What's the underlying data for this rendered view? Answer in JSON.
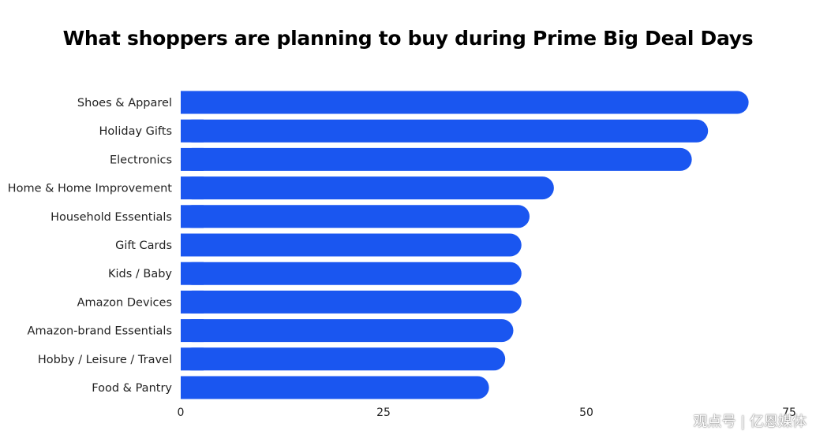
{
  "chart_data": {
    "type": "bar",
    "orientation": "horizontal",
    "title": "What shoppers are planning to buy during Prime Big Deal Days",
    "categories": [
      "Shoes & Apparel",
      "Holiday Gifts",
      "Electronics",
      "Home & Home Improvement",
      "Household Essentials",
      "Gift Cards",
      "Kids / Baby",
      "Amazon Devices",
      "Amazon-brand Essentials",
      "Hobby / Leisure / Travel",
      "Food & Pantry"
    ],
    "values": [
      70,
      65,
      63,
      46,
      43,
      42,
      42,
      42,
      41,
      40,
      38
    ],
    "xlim": [
      0,
      75
    ],
    "xticks": [
      "0",
      "25",
      "50",
      "75"
    ],
    "bar_color": "#1a56f0",
    "grid": false,
    "legend": "none"
  },
  "watermark": "观点号 | 亿恩媒体"
}
